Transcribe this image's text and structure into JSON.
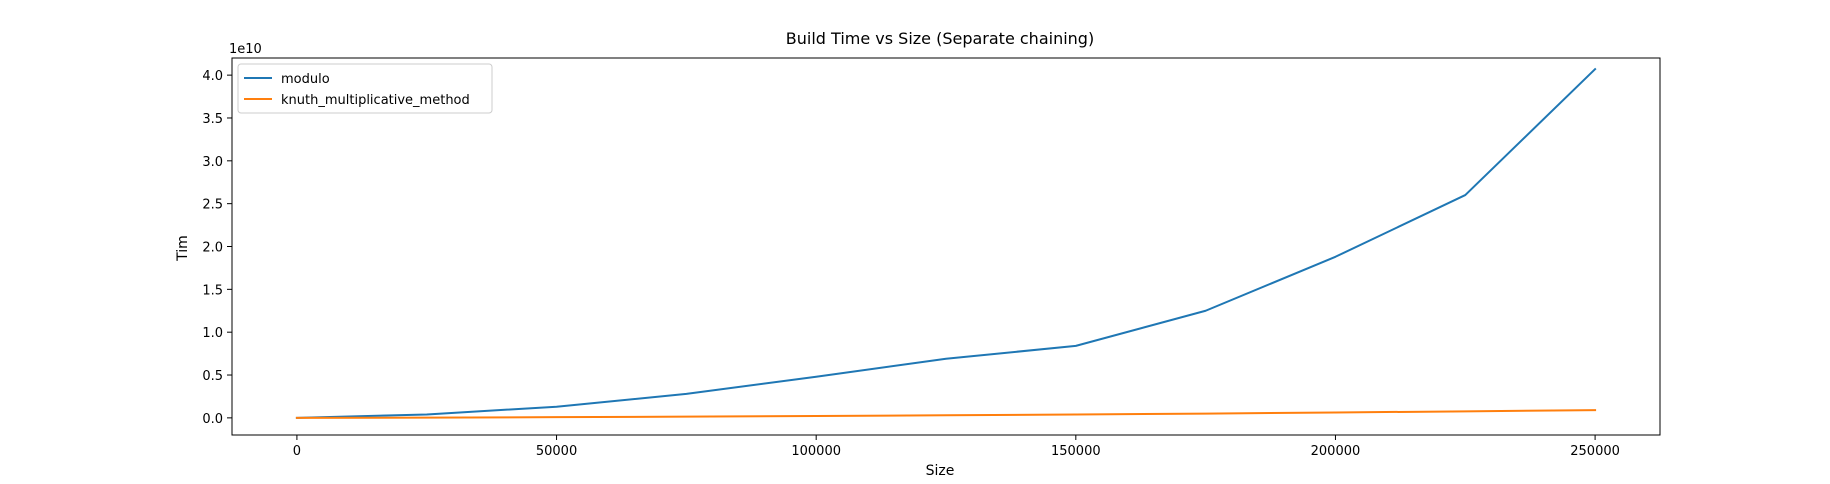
{
  "chart_data": {
    "type": "line",
    "title": "Build Time vs Size (Separate chaining)",
    "xlabel": "Size",
    "ylabel": "Tim",
    "y_offset_text": "1e10",
    "xlim": [
      -12500,
      262500
    ],
    "ylim": [
      -0.2,
      4.2
    ],
    "x_ticks": [
      0,
      50000,
      100000,
      150000,
      200000,
      250000
    ],
    "y_ticks": [
      0.0,
      0.5,
      1.0,
      1.5,
      2.0,
      2.5,
      3.0,
      3.5,
      4.0
    ],
    "y_tick_labels": [
      "0.0",
      "0.5",
      "1.0",
      "1.5",
      "2.0",
      "2.5",
      "3.0",
      "3.5",
      "4.0"
    ],
    "grid": false,
    "legend_position": "upper-left",
    "x": [
      0,
      25000,
      50000,
      75000,
      100000,
      125000,
      150000,
      175000,
      200000,
      225000,
      250000
    ],
    "series": [
      {
        "name": "modulo",
        "color": "#1f77b4",
        "values": [
          0.0,
          0.04,
          0.13,
          0.28,
          0.48,
          0.69,
          0.84,
          1.25,
          1.88,
          2.6,
          4.07
        ]
      },
      {
        "name": "knuth_multiplicative_method",
        "color": "#ff7f0e",
        "values": [
          0.0,
          0.003,
          0.008,
          0.015,
          0.022,
          0.03,
          0.04,
          0.05,
          0.063,
          0.076,
          0.09
        ]
      }
    ]
  }
}
